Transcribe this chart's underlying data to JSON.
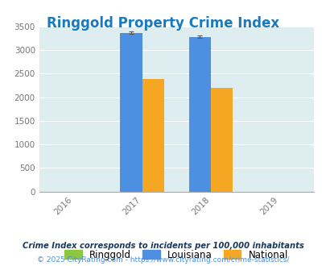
{
  "title": "Ringgold Property Crime Index",
  "title_color": "#1a7abf",
  "years": [
    2016,
    2017,
    2018,
    2019
  ],
  "bar_years": [
    2017,
    2018
  ],
  "ringgold": [
    0,
    0
  ],
  "louisiana": [
    3370,
    3280
  ],
  "national": [
    2380,
    2200
  ],
  "bar_colors": {
    "ringgold": "#8dc63f",
    "louisiana": "#4d8fe0",
    "national": "#f5a623"
  },
  "ylim": [
    0,
    3500
  ],
  "yticks": [
    0,
    500,
    1000,
    1500,
    2000,
    2500,
    3000,
    3500
  ],
  "bg_color": "#ddedf0",
  "fig_bg": "#ffffff",
  "bar_width": 0.32,
  "errorbar_color": "#555555",
  "footnote1": "Crime Index corresponds to incidents per 100,000 inhabitants",
  "footnote2": "© 2025 CityRating.com - https://www.cityrating.com/crime-statistics/",
  "footnote1_color": "#1a3a5c",
  "footnote2_color": "#4d8fe0",
  "tick_color": "#777777",
  "spine_color": "#aaaaaa"
}
